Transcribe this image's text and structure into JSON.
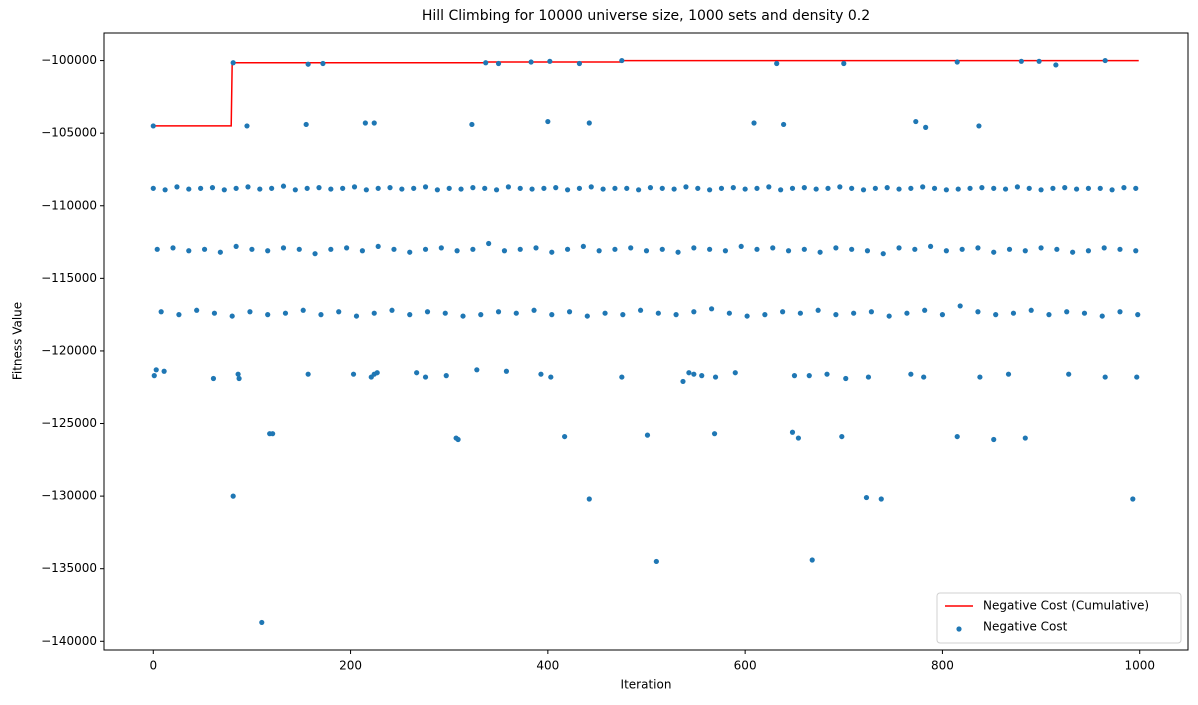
{
  "chart_data": {
    "type": "line",
    "title": "Hill Climbing for 10000 universe size, 1000 sets and density 0.2",
    "x_label": "Iteration",
    "y_label": "Fitness Value",
    "xlim": [
      -49.95,
      1048.95
    ],
    "ylim": [
      -140600,
      -98100
    ],
    "xticks": [
      0,
      200,
      400,
      600,
      800,
      1000
    ],
    "yticks": [
      {
        "value": -140000,
        "label": "−140000"
      },
      {
        "value": -135000,
        "label": "−135000"
      },
      {
        "value": -130000,
        "label": "−130000"
      },
      {
        "value": -125000,
        "label": "−125000"
      },
      {
        "value": -120000,
        "label": "−120000"
      },
      {
        "value": -115000,
        "label": "−115000"
      },
      {
        "value": -110000,
        "label": "−110000"
      },
      {
        "value": -105000,
        "label": "−105000"
      },
      {
        "value": -100000,
        "label": "−100000"
      }
    ],
    "legend": "lower right",
    "series": [
      {
        "name": "Negative Cost (Cumulative)",
        "type": "line",
        "color": "#ff0000",
        "x": [
          0,
          79,
          80,
          335,
          336,
          474,
          475,
          999
        ],
        "values": [
          -104500,
          -104500,
          -100150,
          -100150,
          -100100,
          -100100,
          -100000,
          -100000
        ]
      },
      {
        "name": "Negative Cost",
        "type": "scatter",
        "color": "#1f77b4",
        "x": [
          0,
          12,
          24,
          36,
          48,
          60,
          72,
          84,
          96,
          108,
          120,
          132,
          144,
          156,
          168,
          180,
          192,
          204,
          216,
          228,
          240,
          252,
          264,
          276,
          288,
          300,
          312,
          324,
          336,
          348,
          360,
          372,
          384,
          396,
          408,
          420,
          432,
          444,
          456,
          468,
          480,
          492,
          504,
          516,
          528,
          540,
          552,
          564,
          576,
          588,
          600,
          612,
          624,
          636,
          648,
          660,
          672,
          684,
          696,
          708,
          720,
          732,
          744,
          756,
          768,
          780,
          792,
          804,
          816,
          828,
          840,
          852,
          864,
          876,
          888,
          900,
          912,
          924,
          936,
          948,
          960,
          972,
          984,
          996,
          4,
          20,
          36,
          52,
          68,
          84,
          100,
          116,
          132,
          148,
          164,
          180,
          196,
          212,
          228,
          244,
          260,
          276,
          292,
          308,
          324,
          340,
          356,
          372,
          388,
          404,
          420,
          436,
          452,
          468,
          484,
          500,
          516,
          532,
          548,
          564,
          580,
          596,
          612,
          628,
          644,
          660,
          676,
          692,
          708,
          724,
          740,
          756,
          772,
          788,
          804,
          820,
          836,
          852,
          868,
          884,
          900,
          916,
          932,
          948,
          964,
          980,
          996,
          8,
          26,
          44,
          62,
          80,
          98,
          116,
          134,
          152,
          170,
          188,
          206,
          224,
          242,
          260,
          278,
          296,
          314,
          332,
          350,
          368,
          386,
          404,
          422,
          440,
          458,
          476,
          494,
          512,
          530,
          548,
          566,
          584,
          602,
          620,
          638,
          656,
          674,
          692,
          710,
          728,
          746,
          764,
          782,
          800,
          818,
          836,
          854,
          872,
          890,
          908,
          926,
          944,
          962,
          980,
          998,
          1,
          3,
          11,
          61,
          86,
          87,
          157,
          203,
          221,
          224,
          227,
          267,
          276,
          297,
          328,
          358,
          393,
          403,
          475,
          537,
          543,
          548,
          556,
          570,
          590,
          650,
          665,
          683,
          702,
          725,
          768,
          781,
          838,
          867,
          928,
          965,
          997,
          81,
          157,
          172,
          337,
          350,
          383,
          402,
          432,
          475,
          632,
          700,
          815,
          880,
          898,
          915,
          965,
          0,
          95,
          155,
          215,
          224,
          323,
          400,
          442,
          609,
          639,
          773,
          783,
          837,
          118,
          121,
          307,
          309,
          417,
          501,
          569,
          648,
          654,
          698,
          815,
          852,
          884,
          81,
          442,
          723,
          738,
          993,
          510,
          668,
          110
        ],
        "values": [
          -108800,
          -108900,
          -108700,
          -108850,
          -108800,
          -108750,
          -108900,
          -108800,
          -108700,
          -108850,
          -108800,
          -108650,
          -108900,
          -108800,
          -108750,
          -108850,
          -108800,
          -108700,
          -108900,
          -108800,
          -108750,
          -108850,
          -108800,
          -108700,
          -108900,
          -108800,
          -108850,
          -108750,
          -108800,
          -108900,
          -108700,
          -108800,
          -108850,
          -108800,
          -108750,
          -108900,
          -108800,
          -108700,
          -108850,
          -108800,
          -108800,
          -108900,
          -108750,
          -108800,
          -108850,
          -108700,
          -108800,
          -108900,
          -108800,
          -108750,
          -108850,
          -108800,
          -108700,
          -108900,
          -108800,
          -108750,
          -108850,
          -108800,
          -108700,
          -108800,
          -108900,
          -108800,
          -108750,
          -108850,
          -108800,
          -108700,
          -108800,
          -108900,
          -108850,
          -108800,
          -108750,
          -108800,
          -108850,
          -108700,
          -108800,
          -108900,
          -108800,
          -108750,
          -108850,
          -108800,
          -108800,
          -108900,
          -108750,
          -108800,
          -113000,
          -112900,
          -113100,
          -113000,
          -113200,
          -112800,
          -113000,
          -113100,
          -112900,
          -113000,
          -113300,
          -113000,
          -112900,
          -113100,
          -112800,
          -113000,
          -113200,
          -113000,
          -112900,
          -113100,
          -113000,
          -112600,
          -113100,
          -113000,
          -112900,
          -113200,
          -113000,
          -112800,
          -113100,
          -113000,
          -112900,
          -113100,
          -113000,
          -113200,
          -112900,
          -113000,
          -113100,
          -112800,
          -113000,
          -112900,
          -113100,
          -113000,
          -113200,
          -112900,
          -113000,
          -113100,
          -113300,
          -112900,
          -113000,
          -112800,
          -113100,
          -113000,
          -112900,
          -113200,
          -113000,
          -113100,
          -112900,
          -113000,
          -113200,
          -113100,
          -112900,
          -113000,
          -113100,
          -117300,
          -117500,
          -117200,
          -117400,
          -117600,
          -117300,
          -117500,
          -117400,
          -117200,
          -117500,
          -117300,
          -117600,
          -117400,
          -117200,
          -117500,
          -117300,
          -117400,
          -117600,
          -117500,
          -117300,
          -117400,
          -117200,
          -117500,
          -117300,
          -117600,
          -117400,
          -117500,
          -117200,
          -117400,
          -117500,
          -117300,
          -117100,
          -117400,
          -117600,
          -117500,
          -117300,
          -117400,
          -117200,
          -117500,
          -117400,
          -117300,
          -117600,
          -117400,
          -117200,
          -117500,
          -116900,
          -117300,
          -117500,
          -117400,
          -117200,
          -117500,
          -117300,
          -117400,
          -117600,
          -117300,
          -117500,
          -121700,
          -121300,
          -121400,
          -121900,
          -121600,
          -121900,
          -121600,
          -121600,
          -121800,
          -121600,
          -121500,
          -121500,
          -121800,
          -121700,
          -121300,
          -121400,
          -121600,
          -121800,
          -121800,
          -122100,
          -121500,
          -121600,
          -121700,
          -121800,
          -121500,
          -121700,
          -121700,
          -121600,
          -121900,
          -121800,
          -121600,
          -121800,
          -121800,
          -121600,
          -121600,
          -121800,
          -121800,
          -100150,
          -100250,
          -100200,
          -100150,
          -100200,
          -100100,
          -100050,
          -100200,
          -100000,
          -100200,
          -100200,
          -100100,
          -100050,
          -100050,
          -100300,
          -100000,
          -104500,
          -104500,
          -104400,
          -104300,
          -104300,
          -104400,
          -104200,
          -104300,
          -104300,
          -104400,
          -104200,
          -104600,
          -104500,
          -125700,
          -125700,
          -126000,
          -126100,
          -125900,
          -125800,
          -125700,
          -125600,
          -126000,
          -125900,
          -125900,
          -126100,
          -126000,
          -130000,
          -130200,
          -130100,
          -130200,
          -130200,
          -134500,
          -134400,
          -138700
        ]
      }
    ]
  }
}
